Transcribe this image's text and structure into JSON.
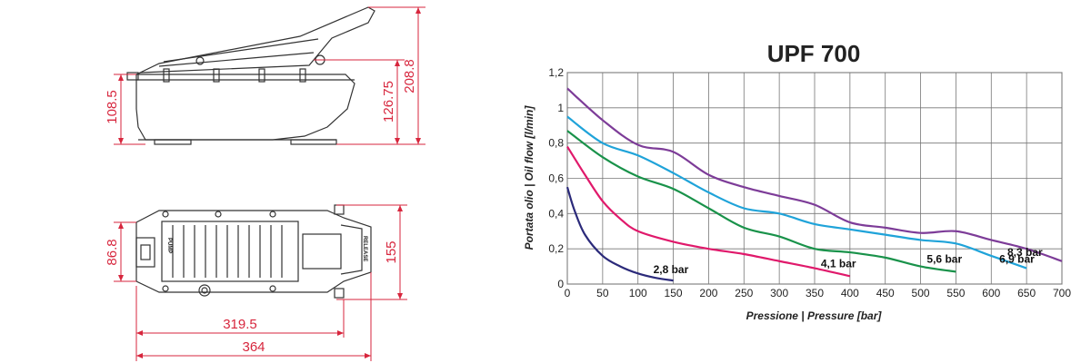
{
  "drawing": {
    "side_view": {
      "dim_base_height": "108.5",
      "dim_mid_height": "126.75",
      "dim_total_height": "208.8"
    },
    "top_view": {
      "dim_width_inner": "86.8",
      "dim_width_outer": "155",
      "dim_length_inner": "319.5",
      "dim_length_outer": "364",
      "label_pump": "PUMP",
      "label_release": "RELEASE"
    },
    "line_color": "#333333",
    "dim_color": "#d7263d"
  },
  "chart_data": {
    "type": "line",
    "title": "UPF 700",
    "xlabel": "Pressione | Pressure [bar]",
    "ylabel": "Portata olio | Oil flow [l/min]",
    "xlim": [
      0,
      700
    ],
    "ylim": [
      0,
      1.2
    ],
    "x_ticks": [
      "0",
      "50",
      "100",
      "150",
      "200",
      "250",
      "300",
      "350",
      "400",
      "450",
      "500",
      "550",
      "600",
      "650",
      "700"
    ],
    "y_ticks": [
      "0",
      "0,2",
      "0,4",
      "0,6",
      "0,8",
      "1",
      "1,2"
    ],
    "grid": true,
    "series": [
      {
        "name": "2,8 bar",
        "color": "#2b2a7a",
        "points": [
          [
            0,
            0.55
          ],
          [
            10,
            0.42
          ],
          [
            25,
            0.28
          ],
          [
            50,
            0.16
          ],
          [
            75,
            0.1
          ],
          [
            100,
            0.06
          ],
          [
            125,
            0.035
          ],
          [
            150,
            0.02
          ]
        ]
      },
      {
        "name": "4,1 bar",
        "color": "#e0196b",
        "points": [
          [
            0,
            0.78
          ],
          [
            25,
            0.62
          ],
          [
            50,
            0.47
          ],
          [
            75,
            0.37
          ],
          [
            100,
            0.3
          ],
          [
            150,
            0.24
          ],
          [
            200,
            0.2
          ],
          [
            250,
            0.17
          ],
          [
            300,
            0.13
          ],
          [
            350,
            0.09
          ],
          [
            400,
            0.045
          ]
        ]
      },
      {
        "name": "5,6 bar",
        "color": "#19924a",
        "points": [
          [
            0,
            0.87
          ],
          [
            50,
            0.72
          ],
          [
            100,
            0.61
          ],
          [
            150,
            0.54
          ],
          [
            200,
            0.43
          ],
          [
            250,
            0.32
          ],
          [
            300,
            0.27
          ],
          [
            350,
            0.2
          ],
          [
            400,
            0.18
          ],
          [
            450,
            0.15
          ],
          [
            500,
            0.1
          ],
          [
            550,
            0.07
          ]
        ]
      },
      {
        "name": "6,9 bar",
        "color": "#1fa3d9",
        "points": [
          [
            0,
            0.95
          ],
          [
            50,
            0.8
          ],
          [
            100,
            0.73
          ],
          [
            150,
            0.63
          ],
          [
            200,
            0.52
          ],
          [
            250,
            0.43
          ],
          [
            300,
            0.4
          ],
          [
            350,
            0.34
          ],
          [
            400,
            0.31
          ],
          [
            450,
            0.28
          ],
          [
            500,
            0.25
          ],
          [
            550,
            0.23
          ],
          [
            600,
            0.16
          ],
          [
            650,
            0.09
          ]
        ]
      },
      {
        "name": "8,3 bar",
        "color": "#7d3c98",
        "points": [
          [
            0,
            1.11
          ],
          [
            50,
            0.93
          ],
          [
            100,
            0.79
          ],
          [
            150,
            0.75
          ],
          [
            200,
            0.62
          ],
          [
            250,
            0.55
          ],
          [
            300,
            0.5
          ],
          [
            350,
            0.45
          ],
          [
            400,
            0.35
          ],
          [
            450,
            0.32
          ],
          [
            500,
            0.29
          ],
          [
            550,
            0.3
          ],
          [
            600,
            0.25
          ],
          [
            650,
            0.2
          ],
          [
            700,
            0.13
          ]
        ]
      }
    ]
  }
}
